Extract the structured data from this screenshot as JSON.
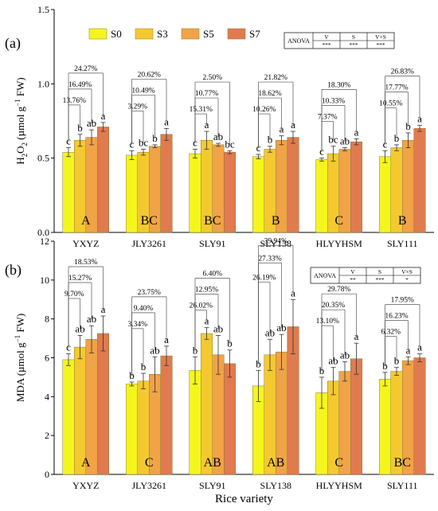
{
  "chart_data": [
    {
      "type": "bar",
      "panel_label": "(a)",
      "ylabel_main": "H",
      "ylabel_sub": "2",
      "ylabel_mid": "O",
      "ylabel_sub2": "2",
      "ylabel_rest": " (µmol g",
      "ylabel_sup": "−1",
      "ylabel_end": " FW)",
      "ylim": [
        0,
        1.5
      ],
      "yticks": [
        "0.0",
        "0.5",
        "1.0",
        "1.5"
      ],
      "ytick_values": [
        0,
        0.5,
        1.0,
        1.5
      ],
      "categories": [
        "YXYZ",
        "JLY3261",
        "SLY91",
        "SLY138",
        "HLYYHSM",
        "SLY111"
      ],
      "series": [
        {
          "name": "S0",
          "color": "#f5f51e",
          "values": [
            0.54,
            0.52,
            0.53,
            0.51,
            0.49,
            0.51
          ],
          "err": [
            0.03,
            0.03,
            0.03,
            0.015,
            0.01,
            0.04
          ],
          "letters": [
            "c",
            "c",
            "c",
            "c",
            "c",
            "c"
          ]
        },
        {
          "name": "S3",
          "color": "#f4c930",
          "values": [
            0.62,
            0.54,
            0.62,
            0.56,
            0.53,
            0.57
          ],
          "err": [
            0.04,
            0.02,
            0.06,
            0.02,
            0.05,
            0.02
          ],
          "letters": [
            "b",
            "bc",
            "a",
            "b",
            "bc",
            "b"
          ]
        },
        {
          "name": "S5",
          "color": "#f0a347",
          "values": [
            0.64,
            0.58,
            0.59,
            0.62,
            0.56,
            0.62
          ],
          "err": [
            0.05,
            0.01,
            0.01,
            0.03,
            0.01,
            0.05
          ],
          "letters": [
            "ab",
            "b",
            "ab",
            "a",
            "ab",
            "b"
          ]
        },
        {
          "name": "S7",
          "color": "#e07b4f",
          "values": [
            0.71,
            0.66,
            0.54,
            0.64,
            0.61,
            0.7
          ],
          "err": [
            0.03,
            0.04,
            0.01,
            0.04,
            0.02,
            0.02
          ],
          "letters": [
            "a",
            "a",
            "bc",
            "a",
            "a",
            "a"
          ]
        }
      ],
      "group_letters": [
        "A",
        "BC",
        "BC",
        "B",
        "C",
        "B"
      ],
      "group_letter_colors": [
        "#000000",
        "#000000",
        "#000000",
        "#000000",
        "#000000",
        "#000000"
      ],
      "pct_labels": [
        [
          "13.76%",
          "16.49%",
          "24.27%"
        ],
        [
          "3.29%",
          "10.49%",
          "20.62%"
        ],
        [
          "15.31%",
          "10.77%",
          "2.50%"
        ],
        [
          "10.26%",
          "18.62%",
          "21.82%"
        ],
        [
          "7.37%",
          "10.33%",
          "18.30%"
        ],
        [
          "10.55%",
          "17.77%",
          "26.83%"
        ]
      ],
      "anova": {
        "title": "ANOVA",
        "cols": [
          "V",
          "S",
          "V×S"
        ],
        "vals": [
          "***",
          "***",
          "***"
        ]
      },
      "legend": [
        "S0",
        "S3",
        "S5",
        "S7"
      ]
    },
    {
      "type": "bar",
      "panel_label": "(b)",
      "ylabel": "MDA (µmol g",
      "ylabel_sup": "−1",
      "ylabel_end": " FW)",
      "ylim": [
        0,
        12
      ],
      "yticks": [
        "0",
        "2",
        "4",
        "6",
        "8",
        "10",
        "12"
      ],
      "ytick_values": [
        0,
        2,
        4,
        6,
        8,
        10,
        12
      ],
      "xlabel": "Rice variety",
      "categories": [
        "YXYZ",
        "JLY3261",
        "SLY91",
        "SLY138",
        "HLYYHSM",
        "SLY111"
      ],
      "series": [
        {
          "name": "S0",
          "color": "#f5f51e",
          "values": [
            5.9,
            4.65,
            5.35,
            4.55,
            4.2,
            4.9
          ],
          "err": [
            0.3,
            0.1,
            0.7,
            0.8,
            0.8,
            0.35
          ],
          "letters": [
            "c",
            "b",
            "b",
            "b",
            "b",
            "b"
          ]
        },
        {
          "name": "S3",
          "color": "#f4c930",
          "values": [
            6.55,
            4.8,
            7.25,
            6.15,
            4.8,
            5.3
          ],
          "err": [
            0.6,
            0.4,
            0.3,
            0.8,
            0.7,
            0.2
          ],
          "letters": [
            "ab",
            "b",
            "a",
            "ab",
            "ab",
            "b"
          ]
        },
        {
          "name": "S5",
          "color": "#f0a347",
          "values": [
            6.95,
            5.15,
            6.15,
            6.3,
            5.3,
            5.85
          ],
          "err": [
            0.7,
            0.9,
            1.0,
            0.9,
            0.5,
            0.2
          ],
          "letters": [
            "ab",
            "ab",
            "ab",
            "ab",
            "ab",
            "a"
          ]
        },
        {
          "name": "S7",
          "color": "#e07b4f",
          "values": [
            7.25,
            6.1,
            5.7,
            7.6,
            5.95,
            6.0
          ],
          "err": [
            0.9,
            0.5,
            0.7,
            1.4,
            0.8,
            0.2
          ],
          "letters": [
            "a",
            "a",
            "b",
            "a",
            "a",
            "a"
          ]
        }
      ],
      "group_letters": [
        "A",
        "C",
        "AB",
        "AB",
        "C",
        "BC"
      ],
      "group_letter_colors": [
        "#000000",
        "#000000",
        "#c0392b",
        "#000000",
        "#000000",
        "#000000"
      ],
      "pct_labels": [
        [
          "9.70%",
          "15.27%",
          "18.53%"
        ],
        [
          "3.34%",
          "9.40%",
          "23.75%"
        ],
        [
          "26.02%",
          "12.95%",
          "6.40%"
        ],
        [
          "26.19%",
          "27.33%",
          "39.94%"
        ],
        [
          "13.10%",
          "20.35%",
          "29.78%"
        ],
        [
          "6.32%",
          "16.23%",
          "17.95%"
        ]
      ],
      "pct_colors": [
        [
          "#000000",
          "#c0392b",
          "#000000"
        ],
        [
          "#000000",
          "#000000",
          "#000000"
        ],
        [
          "#000000",
          "#c0392b",
          "#000000"
        ],
        [
          "#000000",
          "#000000",
          "#000000"
        ],
        [
          "#000000",
          "#000000",
          "#000000"
        ],
        [
          "#000000",
          "#000000",
          "#000000"
        ]
      ],
      "anova": {
        "title": "ANOVA",
        "cols": [
          "V",
          "S",
          "V×S"
        ],
        "vals": [
          "**",
          "***",
          "*"
        ]
      }
    }
  ]
}
